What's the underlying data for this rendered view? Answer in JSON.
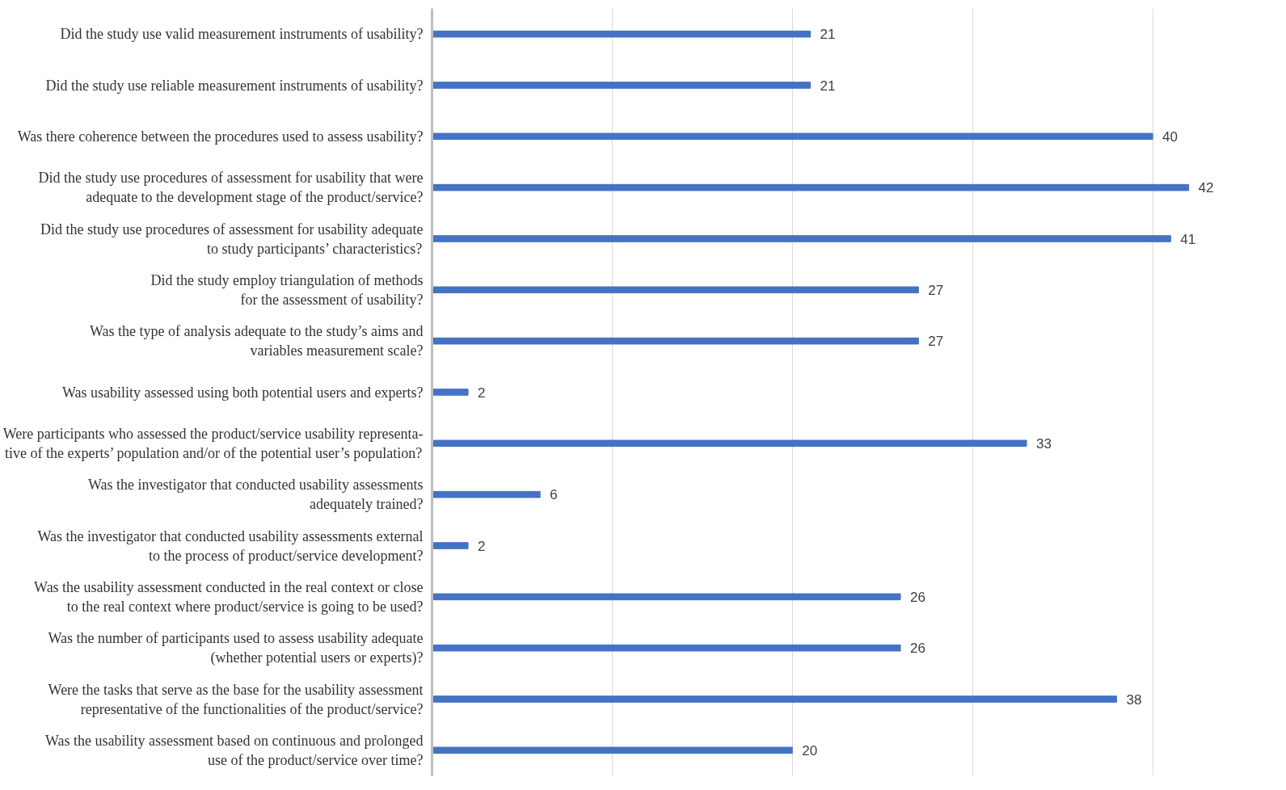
{
  "chart_data": {
    "type": "bar",
    "orientation": "horizontal",
    "color": "#4472c4",
    "data_labels": true,
    "grid": "x",
    "tick_labels": "y",
    "categories": [
      "Did the study use valid measurement instruments of usability?",
      "Did the study use reliable measurement instruments of usability?",
      "Was there coherence between the procedures used to assess usability?",
      "Did the study use procedures of assessment for usability that were\nadequate to the development stage of the product/service?",
      "Did the study use procedures of assessment for usability adequate\nto study participants’ characteristics?",
      "Did the study employ triangulation of methods\nfor the assessment of usability?",
      "Was the type of analysis adequate to the study’s aims and\nvariables measurement scale?",
      "Was usability assessed using both potential users and experts?",
      "Were participants who assessed the product/service usability representa-\ntive of the experts’ population and/or of the potential user’s population?",
      "Was the investigator that conducted usability assessments\nadequately trained?",
      "Was the investigator that conducted usability assessments external\nto the process of product/service development?",
      "Was the usability assessment conducted in the real context or close\nto the real context where product/service is going to be used?",
      "Was the number of participants used to assess usability adequate\n(whether potential users or experts)?",
      "Were the tasks that serve as the base for the usability assessment\nrepresentative of the functionalities of the product/service?",
      "Was the usability assessment based on continuous and prolonged\nuse of the product/service over time?"
    ],
    "values": [
      21,
      21,
      40,
      42,
      41,
      27,
      27,
      2,
      33,
      6,
      2,
      26,
      26,
      38,
      20
    ]
  }
}
